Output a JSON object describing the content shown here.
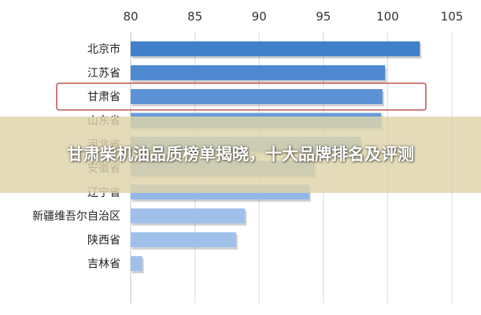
{
  "banner": {
    "title": "甘肃柴机油品质榜单揭晓，十大品牌排名及评测"
  },
  "chart_data": {
    "type": "bar",
    "orientation": "horizontal",
    "title": "",
    "xlabel": "",
    "ylabel": "",
    "xlim": [
      80,
      105
    ],
    "x_ticks": [
      80,
      85,
      90,
      95,
      100,
      105
    ],
    "x_axis_position": "top",
    "grid": true,
    "categories": [
      "北京市",
      "江苏省",
      "甘肃省",
      "山东省",
      "河北省",
      "安徽省",
      "辽宁省",
      "新疆维吾尔自治区",
      "陕西省",
      "吉林省"
    ],
    "values": [
      102.5,
      99.8,
      99.6,
      99.5,
      97.9,
      94.3,
      93.9,
      88.9,
      88.2,
      80.9
    ],
    "highlight_category": "甘肃省",
    "colors": {
      "bar_dark": "#3f7fcc",
      "bar_light": "#8fb3e6",
      "highlight_box": "#c0504d",
      "grid": "#d9d9d9"
    }
  }
}
